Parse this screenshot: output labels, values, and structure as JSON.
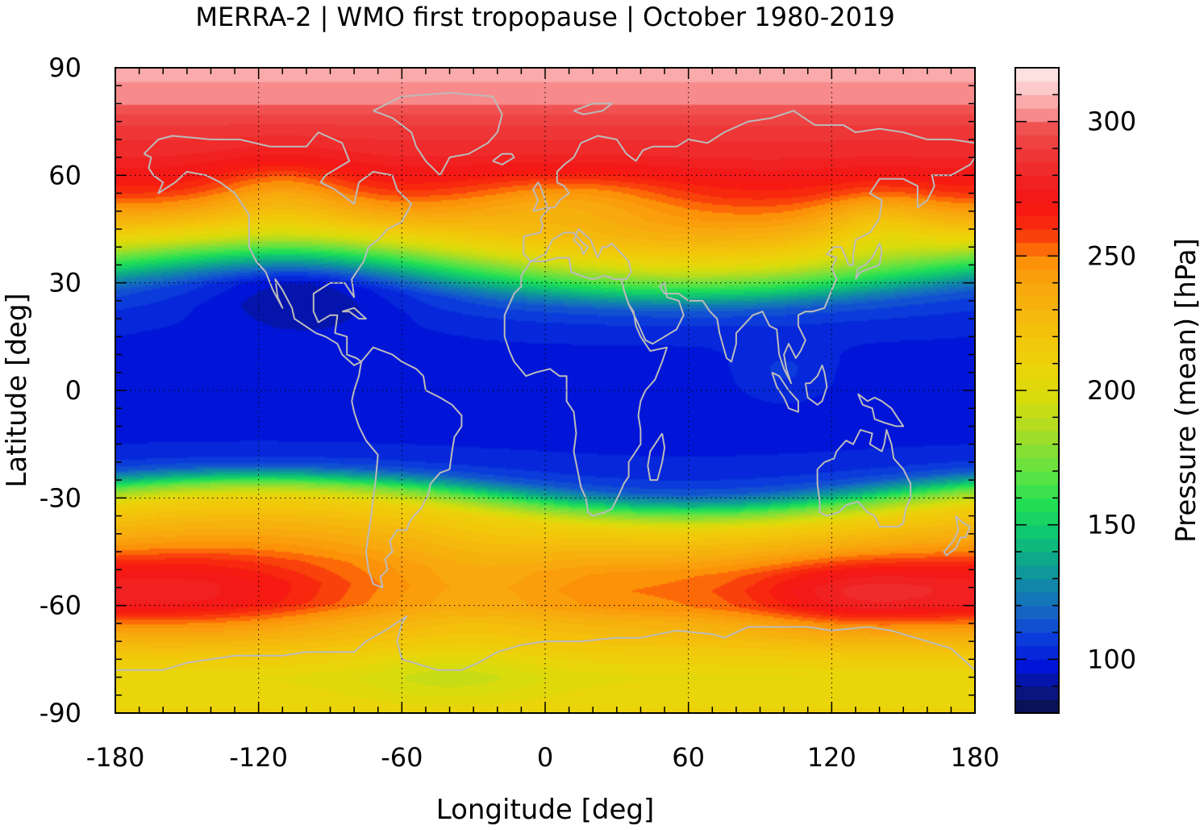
{
  "chart_data": {
    "type": "heatmap",
    "title": "MERRA-2 | WMO first tropopause | October 1980-2019",
    "xlabel": "Longitude [deg]",
    "ylabel": "Latitude [deg]",
    "colorbar_label": "Pressure (mean) [hPa]",
    "xlim": [
      -180,
      180
    ],
    "ylim": [
      -90,
      90
    ],
    "xticks": [
      -180,
      -120,
      -60,
      0,
      60,
      120,
      180
    ],
    "yticks": [
      -90,
      -60,
      -30,
      0,
      30,
      60,
      90
    ],
    "colorbar_range": [
      80,
      320
    ],
    "colorbar_step": 5,
    "colorbar_ticks": [
      100,
      150,
      200,
      250,
      300
    ],
    "grid": true,
    "coastlines": true,
    "zonal_mean_profile": {
      "lat": [
        -90,
        -85,
        -80,
        -75,
        -70,
        -65,
        -60,
        -55,
        -50,
        -45,
        -40,
        -35,
        -30,
        -27,
        -24,
        -20,
        -15,
        -10,
        -5,
        0,
        5,
        10,
        15,
        20,
        25,
        28,
        31,
        34,
        37,
        40,
        43,
        46,
        50,
        55,
        60,
        65,
        70,
        75,
        80,
        85,
        90
      ],
      "pressure": [
        213,
        210,
        207,
        215,
        225,
        235,
        250,
        253,
        250,
        240,
        228,
        215,
        175,
        140,
        115,
        105,
        102,
        100,
        100,
        100,
        100,
        101,
        103,
        107,
        115,
        130,
        150,
        170,
        190,
        208,
        222,
        235,
        250,
        265,
        275,
        283,
        288,
        294,
        303,
        307,
        310
      ]
    },
    "features": [
      {
        "lon": -150,
        "lat": -57,
        "w": 60,
        "h": 12,
        "amp": 27
      },
      {
        "lon": 130,
        "lat": -57,
        "w": 45,
        "h": 11,
        "amp": 27
      },
      {
        "lon": -30,
        "lat": -55,
        "w": 40,
        "h": 15,
        "amp": -12
      },
      {
        "lon": -40,
        "lat": -80,
        "w": 40,
        "h": 8,
        "amp": -12
      },
      {
        "lon": -110,
        "lat": 55,
        "w": 30,
        "h": 10,
        "amp": -20
      },
      {
        "lon": 10,
        "lat": 53,
        "w": 45,
        "h": 8,
        "amp": -20
      },
      {
        "lon": 140,
        "lat": 47,
        "w": 25,
        "h": 10,
        "amp": -18
      },
      {
        "lon": -100,
        "lat": 30,
        "w": 45,
        "h": 12,
        "amp": -18
      },
      {
        "lon": 100,
        "lat": 5,
        "w": 20,
        "h": 8,
        "amp": 8
      }
    ],
    "zonal_shift": {
      "amp": 5,
      "center_lon": -30,
      "lat_scale": 18
    }
  },
  "colors": {
    "coastline": "#bbbbbb",
    "grid": "#000000",
    "frame": "#000000"
  }
}
